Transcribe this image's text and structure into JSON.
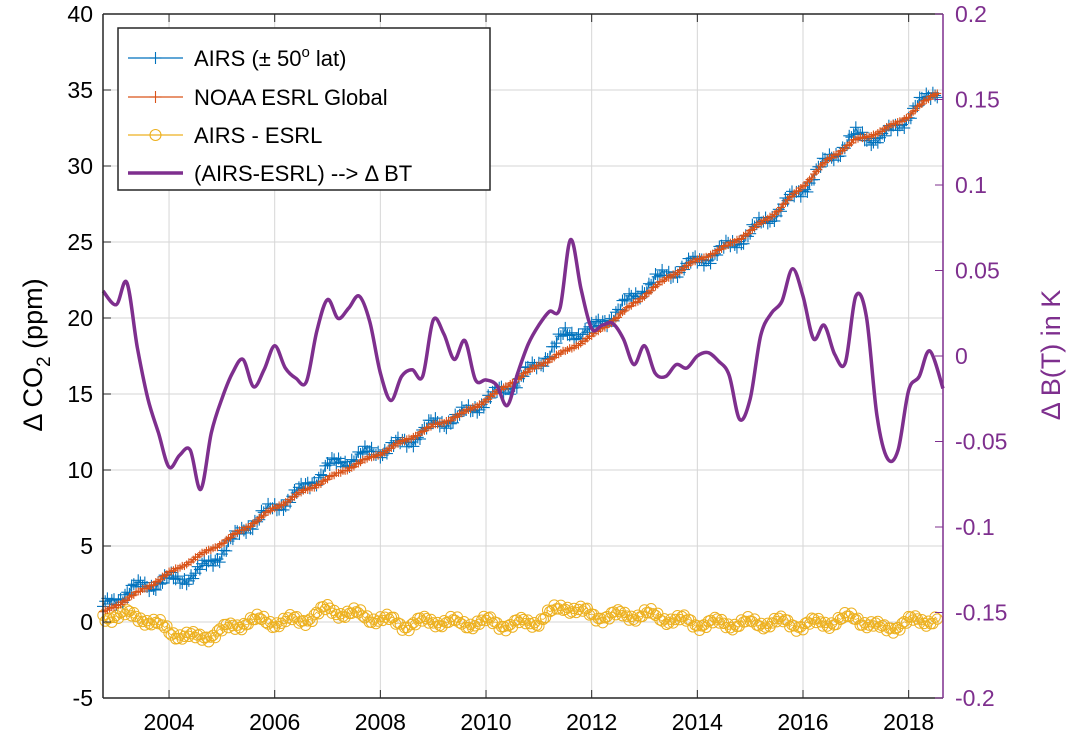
{
  "chart_data": {
    "type": "line",
    "ylabel_left": "Δ CO₂ (ppm)",
    "ylabel_left_parts": {
      "prefix": "Δ CO",
      "sub": "2",
      "suffix": " (ppm)"
    },
    "ylabel_right": "Δ B(T) in K",
    "xlim": [
      2002.75,
      2018.65
    ],
    "ylim_left": [
      -5,
      40
    ],
    "ylim_right": [
      -0.2,
      0.2
    ],
    "grid": true,
    "legend_position": "top-left",
    "x_ticks": [
      "2004",
      "2006",
      "2008",
      "2010",
      "2012",
      "2014",
      "2016",
      "2018"
    ],
    "y_ticks_left": [
      "-5",
      "0",
      "5",
      "10",
      "15",
      "20",
      "25",
      "30",
      "35",
      "40"
    ],
    "y_ticks_right": [
      "-0.2",
      "-0.15",
      "-0.1",
      "-0.05",
      "0",
      "0.05",
      "0.1",
      "0.15",
      "0.2"
    ],
    "colors": {
      "airs": "#0072BD",
      "esrl": "#D95319",
      "diff": "#EDB120",
      "bt": "#7E2F8E",
      "right_axis": "#7E2F8E"
    },
    "legend": [
      {
        "prefix": "AIRS (± 50",
        "sup": "o",
        "suffix": " lat)",
        "color": "#0072BD",
        "marker": "plus"
      },
      {
        "prefix": "NOAA ESRL Global",
        "sup": "",
        "suffix": "",
        "color": "#D95319",
        "marker": "plus"
      },
      {
        "prefix": "AIRS - ESRL",
        "sup": "",
        "suffix": "",
        "color": "#EDB120",
        "marker": "circle"
      },
      {
        "prefix": "(AIRS-ESRL) --> Δ BT",
        "sup": "",
        "suffix": "",
        "color": "#7E2F8E",
        "marker": "none"
      }
    ],
    "series": [
      {
        "name": "AIRS (± 50o lat)",
        "axis": "left",
        "x": [
          2002.75,
          2003.0,
          2003.5,
          2004.0,
          2004.5,
          2005.0,
          2005.5,
          2006.0,
          2006.5,
          2007.0,
          2007.5,
          2008.0,
          2008.5,
          2009.0,
          2009.5,
          2010.0,
          2010.5,
          2011.0,
          2011.5,
          2012.0,
          2012.5,
          2013.0,
          2013.5,
          2014.0,
          2014.5,
          2015.0,
          2015.5,
          2016.0,
          2016.5,
          2017.0,
          2017.5,
          2018.0,
          2018.5
        ],
        "y": [
          0.9,
          1.6,
          2.4,
          2.7,
          3.1,
          4.6,
          6.4,
          7.5,
          8.6,
          10.2,
          10.8,
          11.3,
          11.8,
          13.0,
          13.5,
          14.6,
          15.6,
          17.0,
          18.9,
          19.2,
          20.5,
          22.0,
          23.0,
          23.7,
          24.5,
          25.6,
          27.0,
          28.5,
          30.5,
          32.0,
          31.8,
          33.3,
          35.0
        ]
      },
      {
        "name": "NOAA ESRL Global",
        "axis": "left",
        "x": [
          2002.75,
          2003.0,
          2003.5,
          2004.0,
          2004.5,
          2005.0,
          2005.5,
          2006.0,
          2006.5,
          2007.0,
          2007.5,
          2008.0,
          2008.5,
          2009.0,
          2009.5,
          2010.0,
          2010.5,
          2011.0,
          2011.5,
          2012.0,
          2012.5,
          2013.0,
          2013.5,
          2014.0,
          2014.5,
          2015.0,
          2015.5,
          2016.0,
          2016.5,
          2017.0,
          2017.5,
          2018.0,
          2018.5
        ],
        "y": [
          0.6,
          1.1,
          2.1,
          3.2,
          4.2,
          5.2,
          6.3,
          7.5,
          8.5,
          9.4,
          10.3,
          11.1,
          12.0,
          12.9,
          13.6,
          14.6,
          15.8,
          16.9,
          17.8,
          18.8,
          20.1,
          21.5,
          22.8,
          23.8,
          24.6,
          25.7,
          27.0,
          28.7,
          30.5,
          31.7,
          32.3,
          33.3,
          34.8
        ]
      },
      {
        "name": "AIRS - ESRL",
        "axis": "left",
        "x": [
          2002.75,
          2003.0,
          2003.5,
          2004.0,
          2004.5,
          2005.0,
          2005.5,
          2006.0,
          2006.5,
          2007.0,
          2007.5,
          2008.0,
          2008.5,
          2009.0,
          2009.5,
          2010.0,
          2010.5,
          2011.0,
          2011.5,
          2012.0,
          2012.5,
          2013.0,
          2013.5,
          2014.0,
          2014.5,
          2015.0,
          2015.5,
          2016.0,
          2016.5,
          2017.0,
          2017.5,
          2018.0,
          2018.5
        ],
        "y": [
          0.3,
          0.5,
          0.3,
          -0.6,
          -1.1,
          -0.6,
          0.1,
          0.0,
          0.1,
          0.8,
          0.5,
          0.2,
          -0.2,
          0.1,
          -0.1,
          0.0,
          -0.2,
          0.1,
          1.1,
          0.4,
          0.4,
          0.5,
          0.2,
          -0.1,
          -0.1,
          -0.1,
          0.0,
          -0.2,
          0.0,
          0.3,
          -0.5,
          0.0,
          0.2
        ]
      },
      {
        "name": "(AIRS-ESRL) --> Δ BT",
        "axis": "right",
        "x": [
          2002.75,
          2003.0,
          2003.2,
          2003.4,
          2003.6,
          2003.8,
          2004.0,
          2004.2,
          2004.4,
          2004.6,
          2004.8,
          2005.0,
          2005.2,
          2005.4,
          2005.6,
          2005.8,
          2006.0,
          2006.2,
          2006.4,
          2006.6,
          2006.8,
          2007.0,
          2007.2,
          2007.4,
          2007.6,
          2007.8,
          2008.0,
          2008.2,
          2008.4,
          2008.6,
          2008.8,
          2009.0,
          2009.2,
          2009.4,
          2009.6,
          2009.8,
          2010.0,
          2010.2,
          2010.4,
          2010.6,
          2010.8,
          2011.0,
          2011.2,
          2011.4,
          2011.6,
          2011.8,
          2012.0,
          2012.2,
          2012.4,
          2012.6,
          2012.8,
          2013.0,
          2013.2,
          2013.4,
          2013.6,
          2013.8,
          2014.0,
          2014.2,
          2014.4,
          2014.6,
          2014.8,
          2015.0,
          2015.2,
          2015.4,
          2015.6,
          2015.8,
          2016.0,
          2016.2,
          2016.4,
          2016.6,
          2016.8,
          2017.0,
          2017.2,
          2017.4,
          2017.6,
          2017.8,
          2018.0,
          2018.2,
          2018.4,
          2018.65
        ],
        "y": [
          0.038,
          0.03,
          0.043,
          0.005,
          -0.025,
          -0.045,
          -0.065,
          -0.058,
          -0.055,
          -0.078,
          -0.045,
          -0.025,
          -0.01,
          -0.002,
          -0.018,
          -0.008,
          0.006,
          -0.007,
          -0.013,
          -0.015,
          0.015,
          0.033,
          0.022,
          0.028,
          0.035,
          0.02,
          -0.01,
          -0.026,
          -0.012,
          -0.008,
          -0.012,
          0.021,
          0.013,
          -0.002,
          0.009,
          -0.014,
          -0.014,
          -0.017,
          -0.029,
          -0.01,
          0.007,
          0.018,
          0.026,
          0.028,
          0.068,
          0.039,
          0.016,
          0.018,
          0.019,
          0.01,
          -0.005,
          0.006,
          -0.01,
          -0.012,
          -0.005,
          -0.007,
          0.0,
          0.002,
          -0.003,
          -0.011,
          -0.037,
          -0.025,
          0.012,
          0.025,
          0.032,
          0.051,
          0.035,
          0.01,
          0.018,
          0.001,
          -0.004,
          0.035,
          0.023,
          -0.035,
          -0.06,
          -0.055,
          -0.02,
          -0.012,
          0.003,
          -0.019
        ]
      }
    ]
  }
}
